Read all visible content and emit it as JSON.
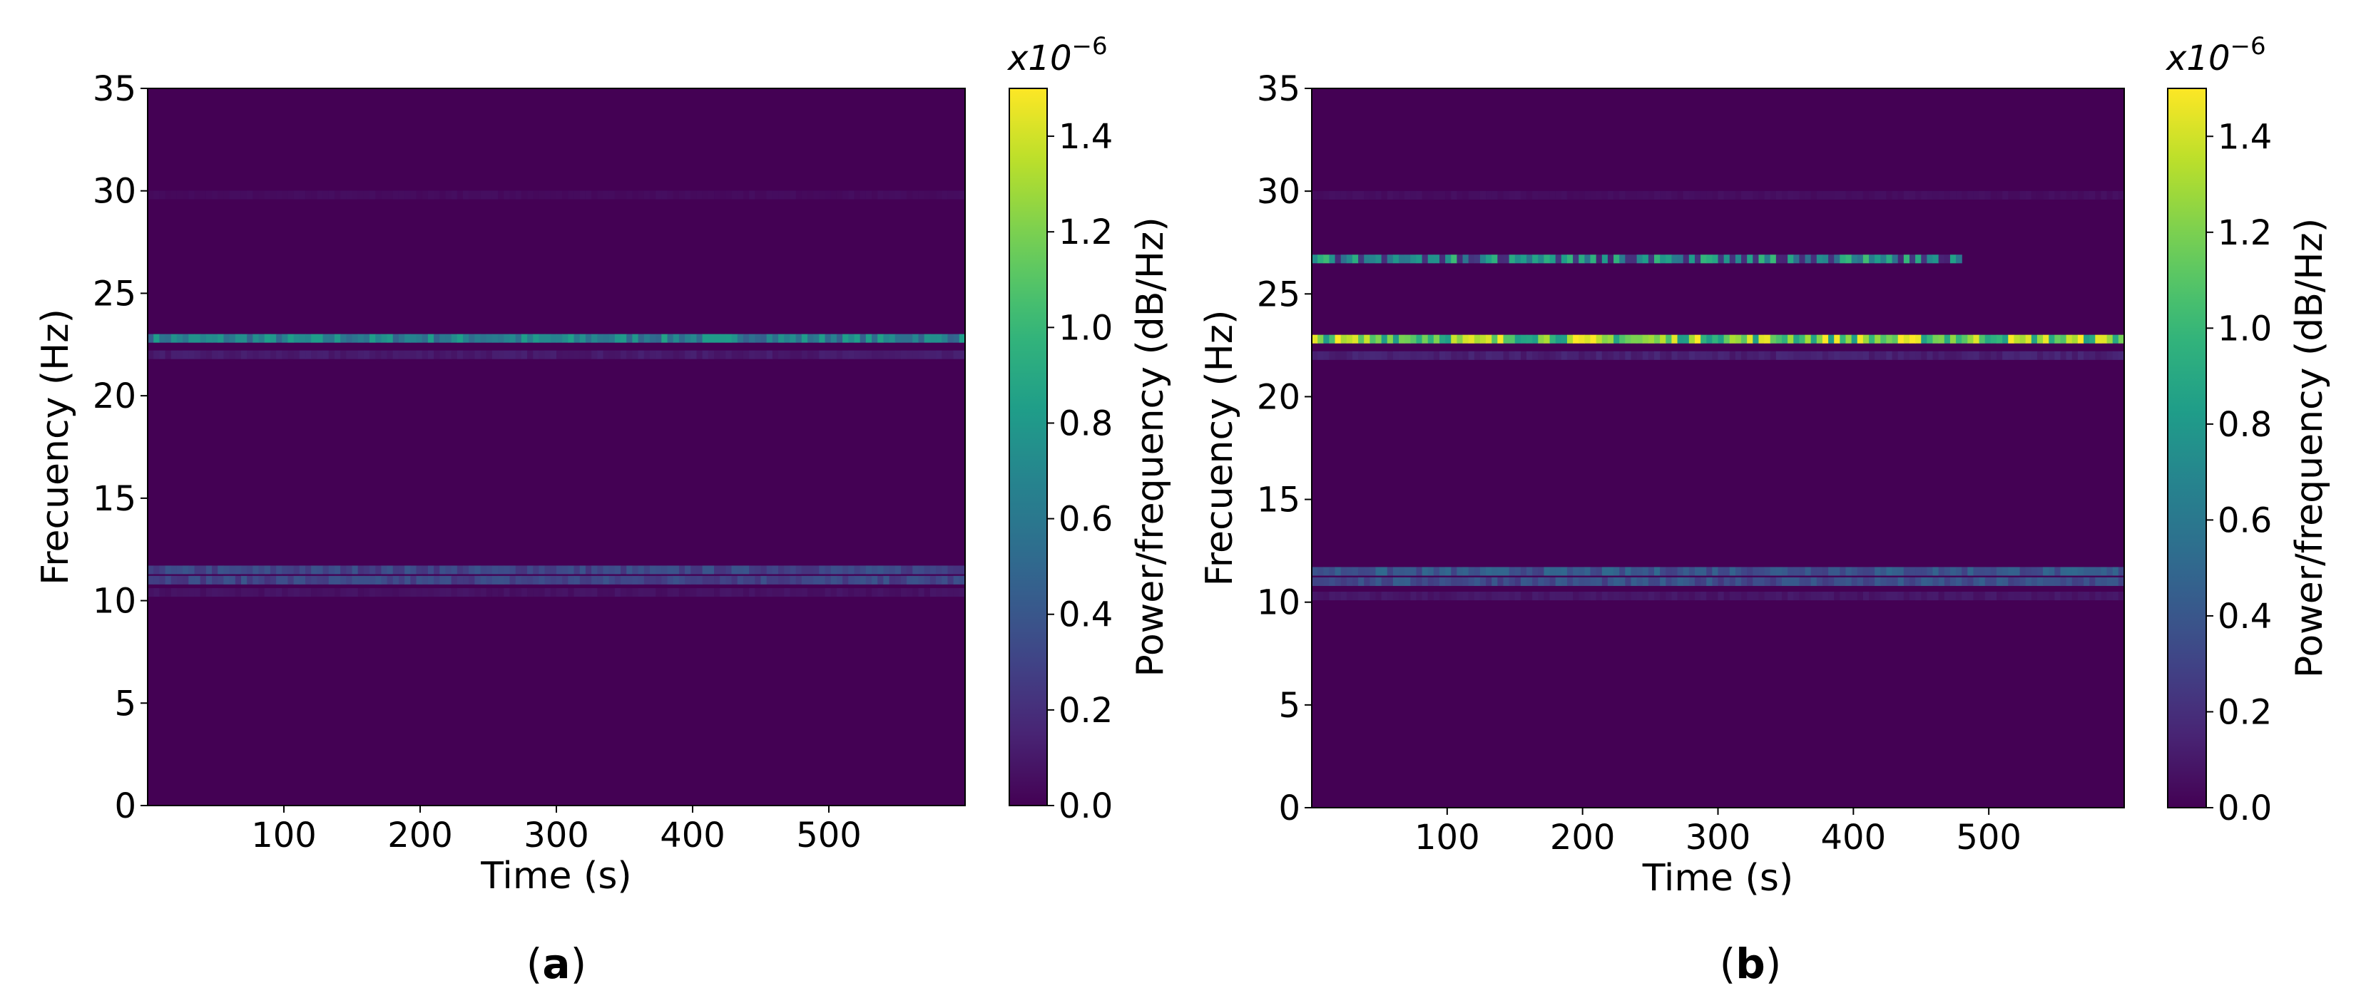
{
  "chart_data": [
    {
      "type": "heatmap",
      "panel_label": "a",
      "xlabel": "Time (s)",
      "ylabel": "Frecuency (Hz)",
      "xlim": [
        0,
        600
      ],
      "ylim": [
        0,
        35
      ],
      "xticks": [
        100,
        200,
        300,
        400,
        500
      ],
      "yticks": [
        0,
        5,
        10,
        15,
        20,
        25,
        30,
        35
      ],
      "colorbar": {
        "label": "Power/frequency (dB/Hz)",
        "multiplier": "x10",
        "exponent": "−6",
        "range": [
          0.0,
          1.5
        ],
        "ticks": [
          "0.0",
          "0.2",
          "0.4",
          "0.6",
          "0.8",
          "1.0",
          "1.2",
          "1.4"
        ],
        "colormap": "viridis"
      },
      "background_value": 0.0,
      "bands": [
        {
          "frequency": 22.8,
          "value": 0.75
        },
        {
          "frequency": 22.0,
          "value": 0.12
        },
        {
          "frequency": 11.5,
          "value": 0.35
        },
        {
          "frequency": 11.0,
          "value": 0.35
        },
        {
          "frequency": 10.4,
          "value": 0.08
        },
        {
          "frequency": 29.8,
          "value": 0.05
        }
      ]
    },
    {
      "type": "heatmap",
      "panel_label": "b",
      "xlabel": "Time (s)",
      "ylabel": "Frecuency (Hz)",
      "xlim": [
        0,
        600
      ],
      "ylim": [
        0,
        35
      ],
      "xticks": [
        100,
        200,
        300,
        400,
        500
      ],
      "yticks": [
        0,
        5,
        10,
        15,
        20,
        25,
        30,
        35
      ],
      "colorbar": {
        "label": "Power/frequency (dB/Hz)",
        "multiplier": "x10",
        "exponent": "−6",
        "range": [
          0.0,
          1.5
        ],
        "ticks": [
          "0.0",
          "0.2",
          "0.4",
          "0.6",
          "0.8",
          "1.0",
          "1.2",
          "1.4"
        ],
        "colormap": "viridis"
      },
      "background_value": 0.0,
      "bands": [
        {
          "frequency": 22.8,
          "value": 1.35
        },
        {
          "frequency": 22.0,
          "value": 0.15
        },
        {
          "frequency": 26.7,
          "value": 0.9,
          "time_range": [
            0,
            480
          ]
        },
        {
          "frequency": 11.5,
          "value": 0.45
        },
        {
          "frequency": 11.0,
          "value": 0.4
        },
        {
          "frequency": 10.3,
          "value": 0.1
        },
        {
          "frequency": 29.8,
          "value": 0.06
        }
      ]
    }
  ]
}
